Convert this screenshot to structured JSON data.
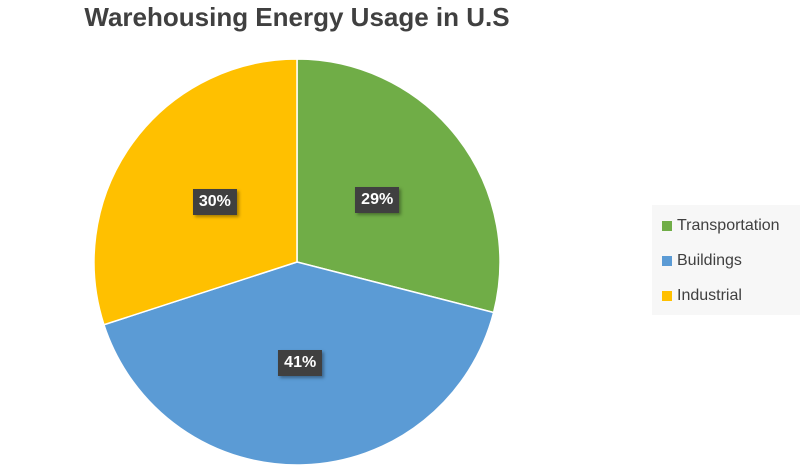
{
  "chart_data": {
    "type": "pie",
    "title": "Warehousing Energy Usage in U.S",
    "categories": [
      "Transportation",
      "Buildings",
      "Industrial"
    ],
    "values": [
      29,
      41,
      30
    ],
    "data_labels": [
      "29%",
      "41%",
      "30%"
    ],
    "colors": [
      "#70AD47",
      "#5B9BD5",
      "#FFC000"
    ],
    "start_angle": "12 o'clock, clockwise",
    "legend_position": "right"
  }
}
